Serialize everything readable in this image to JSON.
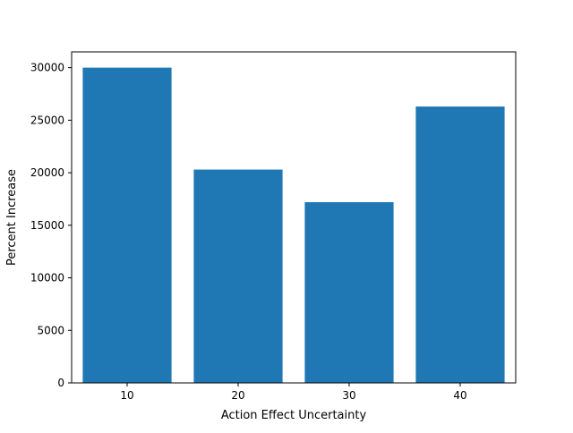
{
  "chart_data": {
    "type": "bar",
    "title": "",
    "xlabel": "Action Effect Uncertainty",
    "ylabel": "Percent Increase",
    "categories": [
      "10",
      "20",
      "30",
      "40"
    ],
    "values": [
      30000,
      20300,
      17200,
      26300
    ],
    "ylim": [
      0,
      31500
    ],
    "yticks": [
      0,
      5000,
      10000,
      15000,
      20000,
      25000,
      30000
    ],
    "grid": false,
    "legend": "none",
    "bar_color": "#1f77b4"
  }
}
